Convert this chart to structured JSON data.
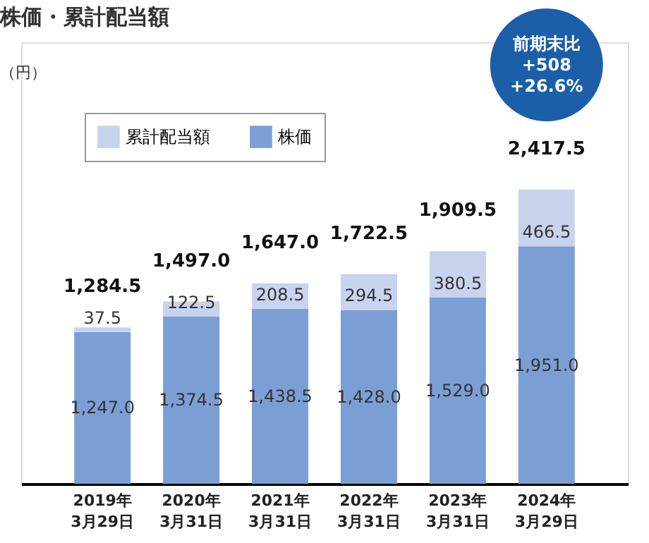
{
  "chart_data": {
    "type": "bar",
    "title": "株価・累計配当額",
    "stacked": true,
    "legend": "top",
    "categories": [
      "2019年\n3月29日",
      "2020年\n3月31日",
      "2021年\n3月31日",
      "2022年\n3月31日",
      "2023年\n3月31日",
      "2024年\n3月29日"
    ],
    "series": [
      {
        "name": "株価",
        "color": "#7b9fd4",
        "values": [
          1247.0,
          1374.5,
          1438.5,
          1428.0,
          1529.0,
          1951.0
        ],
        "value_labels": [
          "1,247.0",
          "1,374.5",
          "1,438.5",
          "1,428.0",
          "1,529.0",
          "1,951.0"
        ]
      },
      {
        "name": "累計配当額",
        "color": "#c8d3ee",
        "values": [
          37.5,
          122.5,
          208.5,
          294.5,
          380.5,
          466.5
        ],
        "value_labels": [
          "37.5",
          "122.5",
          "208.5",
          "294.5",
          "380.5",
          "466.5"
        ]
      }
    ],
    "totals": [
      "1,284.5",
      "1,497.0",
      "1,647.0",
      "1,722.5",
      "1,909.5",
      "2,417.5"
    ],
    "annotations": [
      "（円）",
      "前期末比\n+508\n+26.6%"
    ]
  }
}
